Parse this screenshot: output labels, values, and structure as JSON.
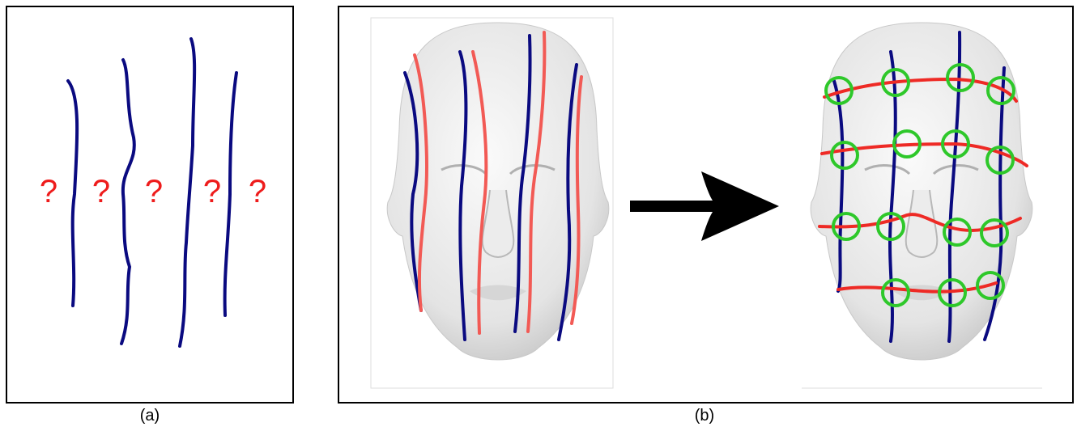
{
  "panel_a": {
    "unknowns": [
      "?",
      "?",
      "?",
      "?",
      "?"
    ],
    "caption": "(a)"
  },
  "panel_b": {
    "caption": "(b)"
  }
}
